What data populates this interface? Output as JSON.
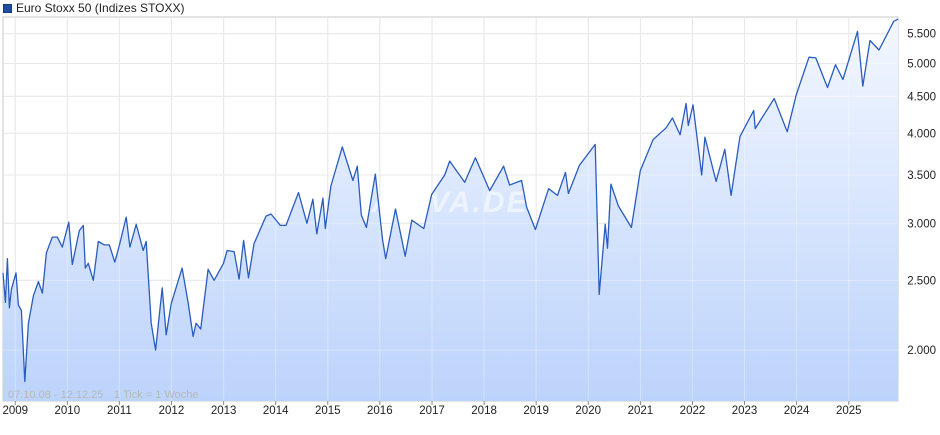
{
  "legend": {
    "label": "Euro Stoxx 50 (Indizes STOXX)",
    "color": "#1f4e9e"
  },
  "footer_note": {
    "range": "07.10.08 - 12.12.25",
    "tick": "1 Tick = 1 Woche"
  },
  "watermark": "ARIVA.DE",
  "colors": {
    "line": "#2a5cbf",
    "area_top": "#f3f7ff",
    "area_bottom": "#bcd3fb",
    "grid": "#dcdcdc"
  },
  "chart_data": {
    "type": "line",
    "title": "Euro Stoxx 50 (Indizes STOXX)",
    "scale": "log",
    "y_ticks": [
      "2.000",
      "2.500",
      "3.000",
      "3.500",
      "4.000",
      "4.500",
      "5.000",
      "5.500"
    ],
    "y_tick_values": [
      2000,
      2500,
      3000,
      3500,
      4000,
      4500,
      5000,
      5500
    ],
    "x_ticks": [
      "2009",
      "2010",
      "2011",
      "2012",
      "2013",
      "2014",
      "2015",
      "2016",
      "2017",
      "2018",
      "2019",
      "2020",
      "2021",
      "2022",
      "2023",
      "2024",
      "2025"
    ],
    "xlim": [
      "2008-10-07",
      "2025-12-12"
    ],
    "ylim": [
      1700,
      5800
    ],
    "grid": true,
    "legend_position": "top-left",
    "series": [
      {
        "name": "Euro Stoxx 50",
        "points": [
          [
            "2008-10-07",
            2560
          ],
          [
            "2008-10-24",
            2330
          ],
          [
            "2008-11-07",
            2680
          ],
          [
            "2008-11-21",
            2290
          ],
          [
            "2008-12-05",
            2430
          ],
          [
            "2009-01-06",
            2560
          ],
          [
            "2009-01-23",
            2310
          ],
          [
            "2009-02-13",
            2270
          ],
          [
            "2009-03-09",
            1810
          ],
          [
            "2009-04-03",
            2180
          ],
          [
            "2009-05-08",
            2380
          ],
          [
            "2009-06-12",
            2490
          ],
          [
            "2009-07-10",
            2400
          ],
          [
            "2009-08-07",
            2730
          ],
          [
            "2009-09-18",
            2870
          ],
          [
            "2009-10-23",
            2870
          ],
          [
            "2009-11-27",
            2780
          ],
          [
            "2010-01-11",
            3010
          ],
          [
            "2010-02-05",
            2630
          ],
          [
            "2010-03-26",
            2930
          ],
          [
            "2010-04-23",
            2980
          ],
          [
            "2010-05-07",
            2600
          ],
          [
            "2010-05-28",
            2640
          ],
          [
            "2010-07-02",
            2500
          ],
          [
            "2010-08-06",
            2830
          ],
          [
            "2010-09-17",
            2800
          ],
          [
            "2010-10-22",
            2800
          ],
          [
            "2010-11-30",
            2650
          ],
          [
            "2010-12-31",
            2790
          ],
          [
            "2011-02-18",
            3060
          ],
          [
            "2011-03-16",
            2780
          ],
          [
            "2011-04-29",
            2990
          ],
          [
            "2011-06-17",
            2750
          ],
          [
            "2011-07-08",
            2830
          ],
          [
            "2011-08-12",
            2180
          ],
          [
            "2011-09-12",
            2000
          ],
          [
            "2011-10-28",
            2440
          ],
          [
            "2011-11-25",
            2100
          ],
          [
            "2011-12-30",
            2320
          ],
          [
            "2012-03-16",
            2600
          ],
          [
            "2012-04-27",
            2330
          ],
          [
            "2012-06-01",
            2090
          ],
          [
            "2012-06-22",
            2180
          ],
          [
            "2012-07-24",
            2140
          ],
          [
            "2012-09-14",
            2590
          ],
          [
            "2012-10-26",
            2500
          ],
          [
            "2012-12-31",
            2640
          ],
          [
            "2013-01-25",
            2750
          ],
          [
            "2013-03-15",
            2740
          ],
          [
            "2013-04-19",
            2510
          ],
          [
            "2013-05-21",
            2840
          ],
          [
            "2013-06-24",
            2520
          ],
          [
            "2013-08-02",
            2810
          ],
          [
            "2013-10-25",
            3070
          ],
          [
            "2013-11-29",
            3090
          ],
          [
            "2014-02-03",
            2980
          ],
          [
            "2014-03-14",
            2980
          ],
          [
            "2014-06-10",
            3310
          ],
          [
            "2014-08-08",
            3000
          ],
          [
            "2014-09-19",
            3240
          ],
          [
            "2014-10-16",
            2900
          ],
          [
            "2014-11-28",
            3250
          ],
          [
            "2014-12-15",
            2950
          ],
          [
            "2015-01-23",
            3380
          ],
          [
            "2015-04-13",
            3830
          ],
          [
            "2015-06-26",
            3440
          ],
          [
            "2015-07-27",
            3600
          ],
          [
            "2015-08-24",
            3080
          ],
          [
            "2015-09-29",
            2960
          ],
          [
            "2015-11-30",
            3510
          ],
          [
            "2016-01-20",
            2850
          ],
          [
            "2016-02-11",
            2680
          ],
          [
            "2016-04-20",
            3140
          ],
          [
            "2016-06-27",
            2700
          ],
          [
            "2016-08-12",
            3030
          ],
          [
            "2016-11-04",
            2950
          ],
          [
            "2016-12-30",
            3290
          ],
          [
            "2017-03-31",
            3500
          ],
          [
            "2017-05-05",
            3660
          ],
          [
            "2017-08-18",
            3420
          ],
          [
            "2017-11-01",
            3700
          ],
          [
            "2018-02-09",
            3330
          ],
          [
            "2018-05-18",
            3600
          ],
          [
            "2018-06-29",
            3390
          ],
          [
            "2018-09-21",
            3440
          ],
          [
            "2018-10-26",
            3160
          ],
          [
            "2018-12-27",
            2940
          ],
          [
            "2019-03-29",
            3350
          ],
          [
            "2019-05-31",
            3280
          ],
          [
            "2019-07-26",
            3530
          ],
          [
            "2019-08-15",
            3300
          ],
          [
            "2019-10-31",
            3610
          ],
          [
            "2020-02-19",
            3860
          ],
          [
            "2020-03-18",
            2390
          ],
          [
            "2020-04-29",
            2990
          ],
          [
            "2020-05-15",
            2770
          ],
          [
            "2020-06-08",
            3400
          ],
          [
            "2020-07-31",
            3170
          ],
          [
            "2020-10-30",
            2960
          ],
          [
            "2020-12-31",
            3550
          ],
          [
            "2021-03-31",
            3920
          ],
          [
            "2021-06-30",
            4070
          ],
          [
            "2021-08-13",
            4200
          ],
          [
            "2021-10-06",
            3980
          ],
          [
            "2021-11-17",
            4400
          ],
          [
            "2021-12-03",
            4100
          ],
          [
            "2022-01-05",
            4380
          ],
          [
            "2022-03-07",
            3500
          ],
          [
            "2022-03-29",
            3950
          ],
          [
            "2022-06-16",
            3430
          ],
          [
            "2022-08-16",
            3800
          ],
          [
            "2022-09-29",
            3280
          ],
          [
            "2022-11-30",
            3960
          ],
          [
            "2023-03-06",
            4300
          ],
          [
            "2023-03-17",
            4060
          ],
          [
            "2023-07-28",
            4470
          ],
          [
            "2023-10-27",
            4020
          ],
          [
            "2023-12-29",
            4520
          ],
          [
            "2024-03-28",
            5100
          ],
          [
            "2024-05-15",
            5090
          ],
          [
            "2024-08-05",
            4630
          ],
          [
            "2024-09-30",
            4980
          ],
          [
            "2024-11-21",
            4750
          ],
          [
            "2025-03-03",
            5540
          ],
          [
            "2025-04-09",
            4650
          ],
          [
            "2025-05-30",
            5380
          ],
          [
            "2025-08-01",
            5220
          ],
          [
            "2025-11-12",
            5720
          ],
          [
            "2025-12-12",
            5760
          ]
        ]
      }
    ]
  }
}
